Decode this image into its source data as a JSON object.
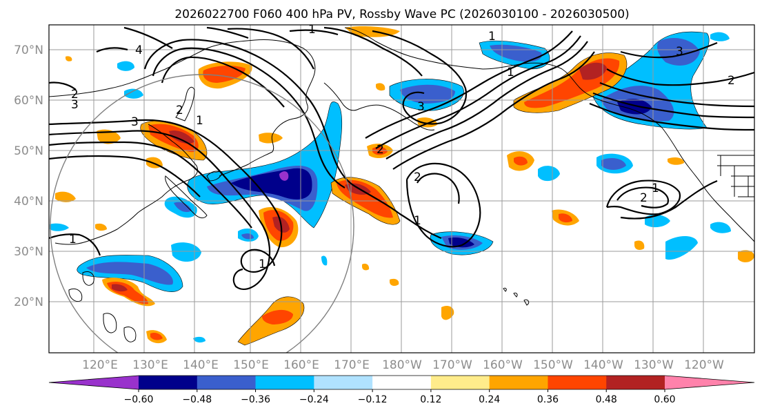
{
  "figure": {
    "title": "2026022700 F060 400 hPa PV, Rossby Wave PC (2026030100 - 2026030500)"
  },
  "map": {
    "projection": "PlateCarree",
    "lon_range": [
      111,
      246
    ],
    "lat_range": [
      10,
      75
    ],
    "lat_labels": [
      "20°N",
      "30°N",
      "40°N",
      "50°N",
      "60°N",
      "70°N"
    ],
    "lat_ticks": [
      20,
      30,
      40,
      50,
      60,
      70
    ],
    "lon_labels": [
      "120°E",
      "130°E",
      "140°E",
      "150°E",
      "160°E",
      "170°E",
      "180°W",
      "170°W",
      "160°W",
      "150°W",
      "140°W",
      "130°W",
      "120°W"
    ],
    "lon_ticks": [
      120,
      130,
      140,
      150,
      160,
      170,
      180,
      190,
      200,
      210,
      220,
      230,
      240
    ],
    "gridline_color": "#9a9a9a",
    "reference_circle": {
      "center_lon": 139,
      "center_lat": 41,
      "radius_deg": 30
    }
  },
  "colorbar": {
    "levels": [
      "−0.60",
      "−0.48",
      "−0.36",
      "−0.24",
      "−0.12",
      "0.12",
      "0.24",
      "0.36",
      "0.48",
      "0.60"
    ],
    "colors": [
      "#9932cc",
      "#00008b",
      "#3a5fcd",
      "#00bfff",
      "#b0e2ff",
      "#ffffff",
      "#ffec8b",
      "#ffa500",
      "#ff4500",
      "#b22222",
      "#ff82ab"
    ]
  },
  "contour_labels": [
    "1",
    "1",
    "1",
    "1",
    "1",
    "1",
    "1",
    "1",
    "2",
    "2",
    "2",
    "2",
    "2",
    "2",
    "3",
    "3",
    "3",
    "3",
    "4"
  ],
  "chart_data": {
    "type": "map-contour",
    "title": "2026022700 F060 400 hPa PV, Rossby Wave PC (2026030100 - 2026030500)",
    "shaded_field": "Rossby Wave PC (PV anomaly)",
    "contour_field": "400 hPa PV",
    "shading_levels": [
      -0.6,
      -0.48,
      -0.36,
      -0.24,
      -0.12,
      0.12,
      0.24,
      0.36,
      0.48,
      0.6
    ],
    "contour_levels": [
      1,
      2,
      3,
      4
    ]
  }
}
